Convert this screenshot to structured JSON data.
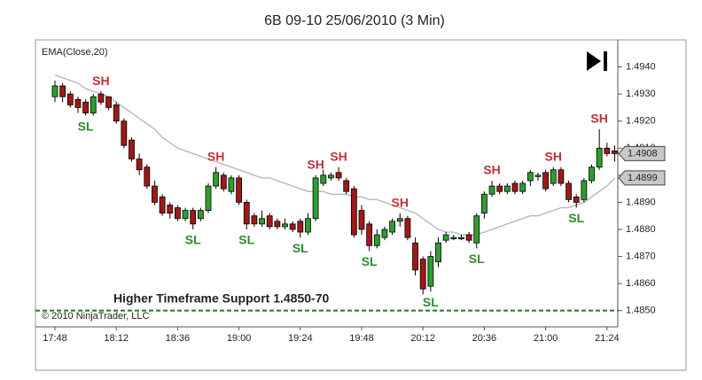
{
  "chart_data": {
    "type": "candlestick",
    "title": "6B 09-10  25/06/2010 (3 Min)",
    "indicator_label": "EMA(Close,20)",
    "support_label": "Higher Timeframe Support 1.4850-70",
    "copyright": "© 2010 NinjaTrader, LLC",
    "categories": [
      "17:48",
      null,
      null,
      null,
      null,
      null,
      null,
      null,
      "18:12",
      null,
      null,
      null,
      null,
      null,
      null,
      null,
      "18:36",
      null,
      null,
      null,
      null,
      null,
      null,
      null,
      "19:00",
      null,
      null,
      null,
      null,
      null,
      null,
      null,
      "19:24",
      null,
      null,
      null,
      null,
      null,
      null,
      null,
      "19:48",
      null,
      null,
      null,
      null,
      null,
      null,
      null,
      "20:12",
      null,
      null,
      null,
      null,
      null,
      null,
      null,
      "20:36",
      null,
      null,
      null,
      null,
      null,
      null,
      null,
      "21:00",
      null,
      null,
      null,
      null,
      null,
      null,
      null,
      "21:24",
      null
    ],
    "open": [
      1.4929,
      1.4933,
      1.493,
      1.4928,
      1.4927,
      1.4923,
      1.493,
      1.4929,
      1.4926,
      1.492,
      1.4913,
      1.4906,
      1.4903,
      1.4896,
      1.4892,
      1.4889,
      1.4888,
      1.4884,
      1.4887,
      1.4884,
      1.4887,
      1.4896,
      1.49,
      1.4894,
      1.4899,
      1.489,
      1.4885,
      1.4882,
      1.4885,
      1.4883,
      1.4881,
      1.4882,
      1.4883,
      1.4879,
      1.4884,
      1.4897,
      1.4899,
      1.4901,
      1.4898,
      1.4895,
      1.4887,
      1.4882,
      1.4874,
      1.4877,
      1.4879,
      1.4883,
      1.4884,
      1.4875,
      1.4869,
      1.4859,
      1.4868,
      1.4876,
      1.4877,
      1.4877,
      1.4878,
      1.4875,
      1.4886,
      1.4893,
      1.4896,
      1.4894,
      1.4897,
      1.4894,
      1.4898,
      1.49,
      1.4901,
      1.4897,
      1.4902,
      1.4897,
      1.4892,
      1.4891,
      1.4898,
      1.4903,
      1.491,
      1.4909
    ],
    "high": [
      1.4935,
      1.4934,
      1.4931,
      1.4929,
      1.4928,
      1.493,
      1.4931,
      1.4929,
      1.4927,
      1.4921,
      1.4914,
      1.4908,
      1.4904,
      1.4898,
      1.4893,
      1.489,
      1.4889,
      1.4888,
      1.4888,
      1.4888,
      1.4897,
      1.4903,
      1.4901,
      1.49,
      1.49,
      1.4891,
      1.4886,
      1.4887,
      1.4886,
      1.4884,
      1.4884,
      1.4883,
      1.4884,
      1.4886,
      1.49,
      1.4902,
      1.4901,
      1.4903,
      1.4899,
      1.4896,
      1.4889,
      1.4883,
      1.488,
      1.4881,
      1.4884,
      1.4886,
      1.4885,
      1.4877,
      1.487,
      1.4872,
      1.4877,
      1.4879,
      1.4878,
      1.4878,
      1.4879,
      1.4886,
      1.4894,
      1.4898,
      1.4897,
      1.4897,
      1.4898,
      1.4898,
      1.4902,
      1.4901,
      1.4902,
      1.4903,
      1.4903,
      1.4898,
      1.4893,
      1.4899,
      1.4904,
      1.4917,
      1.4912,
      1.4911
    ],
    "low": [
      1.4927,
      1.4927,
      1.4925,
      1.4923,
      1.4922,
      1.4922,
      1.4926,
      1.4924,
      1.4919,
      1.491,
      1.4905,
      1.49,
      1.4895,
      1.4889,
      1.4885,
      1.4884,
      1.4883,
      1.4883,
      1.488,
      1.4883,
      1.4886,
      1.4895,
      1.4894,
      1.4893,
      1.4889,
      1.488,
      1.4881,
      1.4881,
      1.488,
      1.488,
      1.488,
      1.4879,
      1.4877,
      1.4878,
      1.4883,
      1.4896,
      1.4898,
      1.4898,
      1.4893,
      1.4877,
      1.4878,
      1.4872,
      1.4873,
      1.4876,
      1.4878,
      1.4881,
      1.4876,
      1.4863,
      1.4856,
      1.4857,
      1.4866,
      1.4875,
      1.4876,
      1.4876,
      1.4875,
      1.4873,
      1.4884,
      1.4892,
      1.4893,
      1.4893,
      1.4893,
      1.4893,
      1.4896,
      1.4898,
      1.4894,
      1.4896,
      1.4896,
      1.489,
      1.4888,
      1.489,
      1.4897,
      1.4902,
      1.4907,
      1.4905
    ],
    "close": [
      1.4933,
      1.4929,
      1.4926,
      1.4925,
      1.4923,
      1.4929,
      1.4927,
      1.4925,
      1.492,
      1.4911,
      1.4906,
      1.4902,
      1.4896,
      1.489,
      1.4886,
      1.4886,
      1.4884,
      1.4887,
      1.4882,
      1.4887,
      1.4896,
      1.4901,
      1.4895,
      1.4899,
      1.489,
      1.4882,
      1.4882,
      1.4884,
      1.4881,
      1.4881,
      1.4882,
      1.488,
      1.4879,
      1.4884,
      1.4899,
      1.49,
      1.49,
      1.4899,
      1.4894,
      1.4878,
      1.488,
      1.4874,
      1.4878,
      1.488,
      1.4883,
      1.4884,
      1.4877,
      1.4865,
      1.4858,
      1.487,
      1.4875,
      1.4878,
      1.4877,
      1.4877,
      1.4876,
      1.4885,
      1.4893,
      1.4896,
      1.4894,
      1.4896,
      1.4894,
      1.4897,
      1.4901,
      1.49,
      1.4895,
      1.4902,
      1.4897,
      1.4891,
      1.489,
      1.4898,
      1.4903,
      1.491,
      1.4908,
      1.4908
    ],
    "ema": [
      1.4937,
      1.4936,
      1.4935,
      1.4934,
      1.4932,
      1.4931,
      1.493,
      1.4929,
      1.4927,
      1.4925,
      1.4923,
      1.4921,
      1.4919,
      1.4917,
      1.4914,
      1.4912,
      1.491,
      1.4909,
      1.4908,
      1.4907,
      1.4906,
      1.4905,
      1.4904,
      1.4903,
      1.4902,
      1.4901,
      1.49,
      1.4899,
      1.4899,
      1.4898,
      1.4897,
      1.4896,
      1.4895,
      1.4894,
      1.4894,
      1.4894,
      1.4893,
      1.4893,
      1.4893,
      1.4892,
      1.4892,
      1.4891,
      1.4891,
      1.489,
      1.4889,
      1.4888,
      1.4887,
      1.4886,
      1.4884,
      1.4882,
      1.488,
      1.4879,
      1.4879,
      1.4878,
      1.4878,
      1.4878,
      1.4879,
      1.488,
      1.4881,
      1.4882,
      1.4883,
      1.4884,
      1.4885,
      1.4885,
      1.4886,
      1.4887,
      1.4888,
      1.4888,
      1.4889,
      1.489,
      1.4892,
      1.4894,
      1.4896,
      1.4899
    ],
    "up_color": "#2e9e2e",
    "down_color": "#a01818",
    "ema_color": "#b4b4b4",
    "support_value": 1.485,
    "support_color": "#1f7a1f",
    "price_markers": [
      1.4908,
      1.4899
    ],
    "annotations": [
      {
        "text": "SH",
        "bar": 6
      },
      {
        "text": "SH",
        "bar": 21
      },
      {
        "text": "SH",
        "bar": 34
      },
      {
        "text": "SH",
        "bar": 37
      },
      {
        "text": "SH",
        "bar": 45
      },
      {
        "text": "SH",
        "bar": 57
      },
      {
        "text": "SH",
        "bar": 65
      },
      {
        "text": "SH",
        "bar": 71
      },
      {
        "text": "SL",
        "bar": 4
      },
      {
        "text": "SL",
        "bar": 18
      },
      {
        "text": "SL",
        "bar": 25
      },
      {
        "text": "SL",
        "bar": 32
      },
      {
        "text": "SL",
        "bar": 41
      },
      {
        "text": "SL",
        "bar": 49
      },
      {
        "text": "SL",
        "bar": 55
      },
      {
        "text": "SL",
        "bar": 68
      }
    ],
    "ylim": [
      1.4844,
      1.495
    ],
    "yticks": [
      {
        "value": 1.485,
        "label": "1.4850"
      },
      {
        "value": 1.486,
        "label": "1.4860"
      },
      {
        "value": 1.487,
        "label": "1.4870"
      },
      {
        "value": 1.488,
        "label": "1.4880"
      },
      {
        "value": 1.489,
        "label": "1.4890"
      },
      {
        "value": 1.49,
        "label": "1.4900"
      },
      {
        "value": 1.491,
        "label": "1.4910"
      },
      {
        "value": 1.492,
        "label": "1.4920"
      },
      {
        "value": 1.493,
        "label": "1.4930"
      },
      {
        "value": 1.494,
        "label": "1.4940"
      }
    ]
  }
}
